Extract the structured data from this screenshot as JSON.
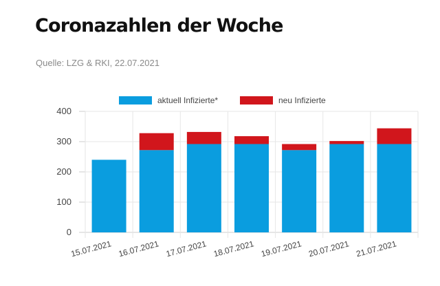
{
  "header": {
    "title": "Coronazahlen der Woche",
    "source": "Quelle: LZG & RKI, 22.07.2021"
  },
  "chart_data": {
    "type": "bar",
    "stacked": true,
    "categories": [
      "15.07.2021",
      "16.07.2021",
      "17.07.2021",
      "18.07.2021",
      "19.07.2021",
      "20.07.2021",
      "21.07.2021"
    ],
    "series": [
      {
        "name": "aktuell Infizierte*",
        "color": "#0a9ddf",
        "values": [
          240,
          272,
          292,
          292,
          272,
          292,
          292
        ]
      },
      {
        "name": "neu Infizierte",
        "color": "#d1161c",
        "values": [
          0,
          56,
          40,
          26,
          20,
          10,
          52
        ]
      }
    ],
    "ylim": [
      0,
      400
    ],
    "yticks": [
      0,
      100,
      200,
      300,
      400
    ],
    "grid": true,
    "legend": "top-center"
  }
}
